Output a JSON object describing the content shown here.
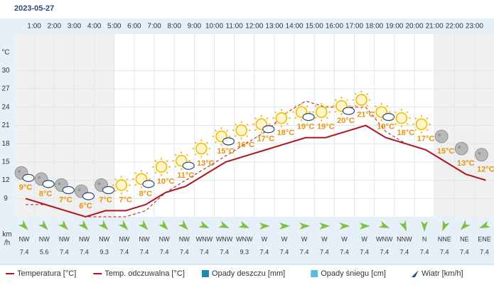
{
  "chart_data": {
    "type": "line",
    "date": "2023-05-27",
    "y_label": "°C",
    "categories": [
      null,
      "1:00",
      "2:00",
      "3:00",
      "4:00",
      "5:00",
      "6:00",
      "7:00",
      "8:00",
      "9:00",
      "10:00",
      "11:00",
      "12:00",
      "13:00",
      "14:00",
      "15:00",
      "16:00",
      "17:00",
      "18:00",
      "19:00",
      "20:00",
      "21:00",
      "22:00",
      "23:00"
    ],
    "ylim": [
      6,
      36
    ],
    "yticks": [
      9,
      12,
      15,
      18,
      21,
      24,
      27,
      30
    ],
    "grid": true,
    "series": [
      {
        "name": "Temperatura [°C]",
        "color": "#b0141c",
        "dash": false,
        "values": [
          9,
          8,
          7,
          6,
          7,
          7,
          8,
          10,
          11,
          13,
          15,
          16,
          17,
          18,
          19,
          19,
          20,
          21,
          19,
          18,
          17,
          15,
          13,
          12
        ],
        "value_labels": [
          "9°C",
          "8°C",
          "7°C",
          "6°C",
          "7°C",
          "7°C",
          "8°C",
          "10°C",
          "11°C",
          "13°C",
          "15°C",
          "16°C",
          "17°C",
          "18°C",
          "19°C",
          "19°C",
          "20°C",
          "21°C",
          "19°C",
          "18°C",
          "17°C",
          "15°C",
          "13°C",
          "12°C"
        ]
      },
      {
        "name": "Temp. odczuwalna [°C]",
        "color": "#b0141c",
        "dash": true,
        "values": [
          8,
          8,
          7,
          6,
          6,
          6,
          7,
          10,
          12,
          14,
          16,
          18,
          20,
          23,
          25,
          24,
          24,
          24,
          20,
          18,
          17,
          15,
          13,
          12
        ]
      }
    ],
    "extra_legend": [
      {
        "name": "Opady deszczu [mm]",
        "color": "#1a8aa8"
      },
      {
        "name": "Opady śniegu [cm]",
        "color": "#5bbcd6"
      },
      {
        "name": "Wiatr [km/h]",
        "color": "#2a4a7a"
      }
    ],
    "wind": {
      "unit": [
        "km",
        "/h"
      ],
      "color": "#7cc242",
      "directions": [
        "NW",
        "NW",
        "NW",
        "NW",
        "NW",
        "NW",
        "NW",
        "NW",
        "NW",
        "WNW",
        "WNW",
        "WNW",
        "W",
        "W",
        "W",
        "W",
        "W",
        "W",
        "WNW",
        "NNW",
        "N",
        "NNE",
        "NE",
        "ENE"
      ],
      "speeds": [
        7.4,
        5.6,
        7.4,
        7.4,
        9.3,
        7.4,
        7.4,
        7.4,
        7.4,
        7.4,
        7.4,
        9.3,
        7.4,
        7.4,
        7.4,
        7.4,
        7.4,
        7.4,
        7.4,
        7.4,
        7.4,
        7.4,
        7.4,
        7.4
      ]
    }
  }
}
